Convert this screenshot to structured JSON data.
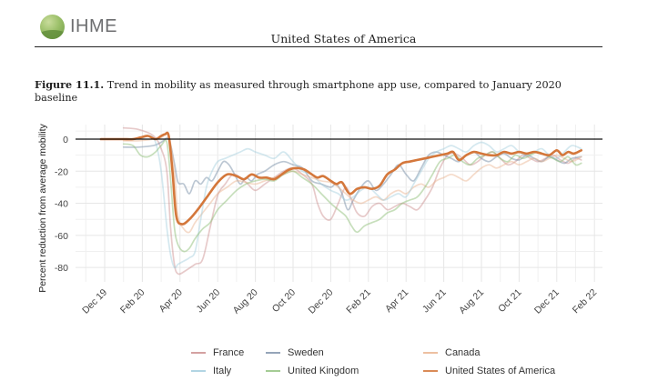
{
  "header": {
    "logo_text": "IHME",
    "country": "United States of America"
  },
  "figure": {
    "label": "Figure 11.1.",
    "caption": "Trend in mobility as measured through smartphone app use, compared to January 2020 baseline"
  },
  "chart_data": {
    "type": "line",
    "title": "",
    "xlabel": "",
    "ylabel": "Percent reduction from average mobility",
    "x_unit": "months since Dec 2019",
    "xlim": [
      -0.3,
      27.5
    ],
    "ylim": [
      -90,
      9
    ],
    "x_ticks": [
      0,
      2,
      4,
      6,
      8,
      10,
      12,
      14,
      16,
      18,
      20,
      22,
      24,
      26
    ],
    "x_tick_labels": [
      "Dec 19",
      "Feb 20",
      "Apr 20",
      "Jun 20",
      "Aug 20",
      "Oct 20",
      "Dec 20",
      "Feb 21",
      "Apr 21",
      "Jun 21",
      "Aug 21",
      "Oct 21",
      "Dec 21",
      "Feb 22"
    ],
    "y_ticks": [
      0,
      -20,
      -40,
      -60,
      -80
    ],
    "y_tick_labels": [
      "0",
      "-20",
      "-40",
      "-60",
      "-80"
    ],
    "reference_line": 0,
    "grid": true,
    "legend_position": "bottom",
    "series": [
      {
        "name": "France",
        "color": "#c98a8a",
        "opacity": 0.45,
        "highlight": false,
        "x": [
          1.0,
          1.8,
          2.6,
          3.0,
          3.3,
          3.5,
          3.7,
          3.9,
          4.3,
          4.8,
          5.2,
          5.6,
          6.0,
          6.4,
          6.8,
          7.2,
          7.6,
          8.0,
          8.5,
          9.0,
          9.5,
          10.0,
          10.5,
          11.0,
          11.3,
          11.6,
          12.0,
          12.4,
          12.8,
          13.1,
          13.4,
          13.8,
          14.2,
          14.6,
          15.0,
          15.4,
          15.8,
          16.2,
          16.6,
          17.0,
          17.4,
          17.8,
          18.2,
          18.6,
          19.0,
          19.4,
          19.8,
          20.2,
          20.6,
          21.0,
          21.4,
          21.8,
          22.2,
          22.6,
          23.0,
          23.4,
          23.8,
          24.2,
          24.6,
          25.0,
          25.3
        ],
        "y": [
          7,
          6,
          2,
          -6,
          -20,
          -55,
          -78,
          -84,
          -82,
          -78,
          -75,
          -55,
          -35,
          -28,
          -22,
          -24,
          -28,
          -32,
          -28,
          -24,
          -20,
          -18,
          -22,
          -28,
          -40,
          -48,
          -50,
          -40,
          -30,
          -38,
          -46,
          -48,
          -42,
          -40,
          -44,
          -42,
          -40,
          -42,
          -44,
          -38,
          -30,
          -18,
          -10,
          -9,
          -12,
          -16,
          -14,
          -10,
          -8,
          -12,
          -16,
          -14,
          -10,
          -12,
          -14,
          -12,
          -10,
          -13,
          -15,
          -12,
          -13
        ]
      },
      {
        "name": "Sweden",
        "color": "#7a8fa8",
        "opacity": 0.5,
        "highlight": false,
        "x": [
          1.0,
          1.8,
          2.6,
          3.0,
          3.4,
          3.7,
          3.9,
          4.2,
          4.5,
          4.8,
          5.1,
          5.4,
          5.7,
          6.0,
          6.3,
          6.6,
          6.9,
          7.2,
          7.5,
          7.8,
          8.1,
          8.5,
          9.0,
          9.5,
          10.0,
          10.5,
          11.0,
          11.5,
          12.0,
          12.3,
          12.6,
          12.9,
          13.2,
          13.6,
          14.0,
          14.4,
          14.8,
          15.2,
          15.6,
          16.0,
          16.4,
          16.8,
          17.2,
          17.6,
          18.0,
          18.4,
          18.8,
          19.2,
          19.6,
          20.0,
          20.4,
          20.8,
          21.2,
          21.6,
          22.0,
          22.4,
          22.8,
          23.2,
          23.6,
          24.0,
          24.4,
          24.8,
          25.3
        ],
        "y": [
          -5,
          -5,
          -4,
          -2,
          0,
          -15,
          -27,
          -28,
          -34,
          -26,
          -28,
          -24,
          -26,
          -20,
          -14,
          -16,
          -22,
          -28,
          -24,
          -26,
          -22,
          -20,
          -16,
          -14,
          -16,
          -18,
          -26,
          -28,
          -30,
          -28,
          -34,
          -44,
          -38,
          -30,
          -26,
          -32,
          -28,
          -22,
          -16,
          -22,
          -26,
          -18,
          -10,
          -8,
          -10,
          -12,
          -14,
          -10,
          -8,
          -12,
          -14,
          -11,
          -9,
          -12,
          -13,
          -10,
          -12,
          -14,
          -11,
          -13,
          -15,
          -12,
          -11
        ]
      },
      {
        "name": "Canada",
        "color": "#e8b089",
        "opacity": 0.45,
        "highlight": false,
        "x": [
          1.0,
          1.8,
          2.6,
          3.0,
          3.4,
          3.7,
          3.9,
          4.2,
          4.5,
          4.8,
          5.2,
          5.6,
          6.0,
          6.5,
          7.0,
          7.5,
          8.0,
          8.5,
          9.0,
          9.5,
          10.0,
          10.5,
          11.0,
          11.5,
          12.0,
          12.4,
          12.8,
          13.2,
          13.6,
          14.0,
          14.4,
          14.8,
          15.2,
          15.6,
          16.0,
          16.4,
          16.8,
          17.2,
          17.6,
          18.0,
          18.4,
          18.8,
          19.2,
          19.6,
          20.0,
          20.4,
          20.8,
          21.2,
          21.6,
          22.0,
          22.4,
          22.8,
          23.2,
          23.6,
          24.0,
          24.4,
          24.8,
          25.3
        ],
        "y": [
          -1,
          -1,
          0,
          1,
          2,
          -20,
          -48,
          -56,
          -58,
          -52,
          -46,
          -40,
          -34,
          -30,
          -26,
          -27,
          -28,
          -26,
          -24,
          -22,
          -20,
          -22,
          -24,
          -26,
          -27,
          -30,
          -34,
          -38,
          -40,
          -38,
          -36,
          -38,
          -34,
          -32,
          -34,
          -30,
          -28,
          -30,
          -26,
          -24,
          -22,
          -24,
          -26,
          -22,
          -18,
          -16,
          -18,
          -16,
          -14,
          -16,
          -14,
          -12,
          -14,
          -12,
          -10,
          -12,
          -14,
          -11
        ]
      },
      {
        "name": "Italy",
        "color": "#9fcbdc",
        "opacity": 0.45,
        "highlight": false,
        "x": [
          1.0,
          1.8,
          2.4,
          2.7,
          3.0,
          3.3,
          3.5,
          3.7,
          3.9,
          4.2,
          4.5,
          4.8,
          5.1,
          5.4,
          5.7,
          6.0,
          6.4,
          6.8,
          7.2,
          7.6,
          8.0,
          8.5,
          9.0,
          9.5,
          10.0,
          10.5,
          11.0,
          11.5,
          12.0,
          12.4,
          12.8,
          13.2,
          13.6,
          14.0,
          14.4,
          14.8,
          15.2,
          15.6,
          16.0,
          16.4,
          16.8,
          17.2,
          17.6,
          18.0,
          18.4,
          18.8,
          19.2,
          19.6,
          20.0,
          20.4,
          20.8,
          21.2,
          21.6,
          22.0,
          22.4,
          22.8,
          23.2,
          23.6,
          24.0,
          24.4,
          24.8,
          25.3
        ],
        "y": [
          0,
          0,
          2,
          -2,
          -20,
          -55,
          -72,
          -80,
          -78,
          -76,
          -74,
          -70,
          -50,
          -30,
          -20,
          -14,
          -12,
          -10,
          -8,
          -6,
          -8,
          -10,
          -12,
          -8,
          -14,
          -20,
          -22,
          -28,
          -32,
          -34,
          -38,
          -36,
          -32,
          -30,
          -34,
          -38,
          -36,
          -34,
          -36,
          -28,
          -20,
          -12,
          -8,
          -6,
          -4,
          -6,
          -8,
          -4,
          -2,
          -4,
          -8,
          -6,
          -4,
          -8,
          -10,
          -8,
          -6,
          -10,
          -12,
          -8,
          -4,
          -6
        ]
      },
      {
        "name": "United Kingdom",
        "color": "#8fbf7a",
        "opacity": 0.5,
        "highlight": false,
        "x": [
          1.0,
          1.5,
          1.9,
          2.3,
          2.7,
          3.0,
          3.3,
          3.5,
          3.7,
          3.9,
          4.2,
          4.5,
          4.8,
          5.2,
          5.6,
          6.0,
          6.5,
          7.0,
          7.5,
          8.0,
          8.5,
          9.0,
          9.5,
          10.0,
          10.5,
          11.0,
          11.5,
          12.0,
          12.4,
          12.8,
          13.1,
          13.4,
          13.8,
          14.2,
          14.6,
          15.0,
          15.4,
          15.8,
          16.2,
          16.6,
          17.0,
          17.4,
          17.8,
          18.2,
          18.6,
          19.0,
          19.4,
          19.8,
          20.2,
          20.6,
          21.0,
          21.4,
          21.8,
          22.2,
          22.6,
          23.0,
          23.4,
          23.8,
          24.2,
          24.6,
          25.0,
          25.3
        ],
        "y": [
          -3,
          -4,
          -10,
          -11,
          -8,
          -4,
          -2,
          -25,
          -55,
          -66,
          -70,
          -68,
          -62,
          -56,
          -52,
          -44,
          -38,
          -32,
          -28,
          -26,
          -25,
          -26,
          -22,
          -20,
          -24,
          -28,
          -34,
          -40,
          -44,
          -48,
          -54,
          -58,
          -54,
          -52,
          -50,
          -46,
          -44,
          -40,
          -38,
          -36,
          -30,
          -22,
          -14,
          -12,
          -10,
          -14,
          -16,
          -12,
          -10,
          -8,
          -12,
          -14,
          -10,
          -12,
          -10,
          -8,
          -10,
          -12,
          -14,
          -11,
          -16,
          -15
        ]
      },
      {
        "name": "United States of America",
        "color": "#d4773b",
        "opacity": 1,
        "highlight": true,
        "x": [
          -0.2,
          0.5,
          1.0,
          1.5,
          1.9,
          2.3,
          2.7,
          3.0,
          3.2,
          3.4,
          3.6,
          3.8,
          4.1,
          4.5,
          5.0,
          5.5,
          6.0,
          6.5,
          7.0,
          7.4,
          7.8,
          8.2,
          8.6,
          9.0,
          9.4,
          9.8,
          10.2,
          10.6,
          11.0,
          11.3,
          11.6,
          12.0,
          12.3,
          12.6,
          13.0,
          13.4,
          13.8,
          14.2,
          14.6,
          15.0,
          15.4,
          15.8,
          16.2,
          16.6,
          17.0,
          17.4,
          17.8,
          18.2,
          18.5,
          18.8,
          19.2,
          19.6,
          20.0,
          20.4,
          20.8,
          21.2,
          21.6,
          22.0,
          22.4,
          22.8,
          23.2,
          23.6,
          24.0,
          24.3,
          24.6,
          24.9,
          25.3
        ],
        "y": [
          0,
          0,
          0,
          0,
          1,
          2,
          0,
          2,
          3,
          2,
          -20,
          -48,
          -53,
          -50,
          -43,
          -35,
          -27,
          -22,
          -23,
          -25,
          -22,
          -24,
          -24,
          -25,
          -22,
          -19,
          -18,
          -19,
          -22,
          -24,
          -23,
          -26,
          -28,
          -27,
          -34,
          -31,
          -30,
          -31,
          -29,
          -22,
          -19,
          -15,
          -14,
          -13,
          -12,
          -11,
          -10,
          -9,
          -8,
          -13,
          -10,
          -8,
          -9,
          -10,
          -10,
          -8,
          -9,
          -8,
          -9,
          -8,
          -9,
          -10,
          -7,
          -10,
          -8,
          -9,
          -7
        ]
      }
    ]
  }
}
